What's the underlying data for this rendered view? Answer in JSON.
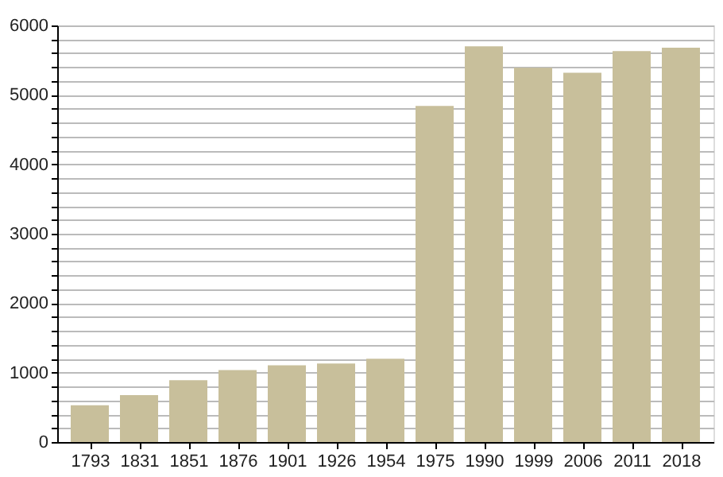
{
  "chart_data": {
    "type": "bar",
    "categories": [
      "1793",
      "1831",
      "1851",
      "1876",
      "1901",
      "1926",
      "1954",
      "1975",
      "1990",
      "1999",
      "2006",
      "2011",
      "2018"
    ],
    "values": [
      530,
      675,
      890,
      1035,
      1105,
      1130,
      1200,
      4840,
      5700,
      5390,
      5320,
      5630,
      5680
    ],
    "color": "#c8bf9b",
    "ylim": [
      0,
      6000
    ],
    "yticks": [
      0,
      {
        "value": 200,
        "label": null
      },
      {
        "value": 400,
        "label": null
      },
      {
        "value": 600,
        "label": null
      },
      {
        "value": 800,
        "label": null
      },
      1000,
      {
        "value": 1200,
        "label": null
      },
      {
        "value": 1400,
        "label": null
      },
      {
        "value": 1600,
        "label": null
      },
      {
        "value": 1800,
        "label": null
      },
      2000,
      {
        "value": 2200,
        "label": null
      },
      {
        "value": 2400,
        "label": null
      },
      {
        "value": 2600,
        "label": null
      },
      {
        "value": 2800,
        "label": null
      },
      3000,
      {
        "value": 3200,
        "label": null
      },
      {
        "value": 3400,
        "label": null
      },
      {
        "value": 3600,
        "label": null
      },
      {
        "value": 3800,
        "label": null
      },
      4000,
      {
        "value": 4200,
        "label": null
      },
      {
        "value": 4400,
        "label": null
      },
      {
        "value": 4600,
        "label": null
      },
      {
        "value": 4800,
        "label": null
      },
      5000,
      {
        "value": 5200,
        "label": null
      },
      {
        "value": 5400,
        "label": null
      },
      {
        "value": 5600,
        "label": null
      },
      {
        "value": 5800,
        "label": null
      },
      6000
    ],
    "grid": "y"
  }
}
